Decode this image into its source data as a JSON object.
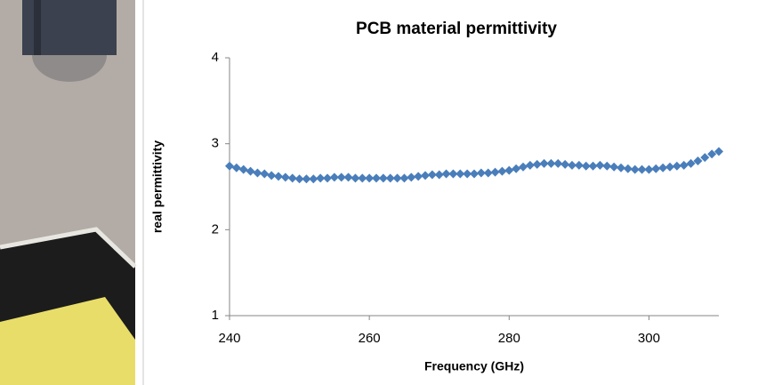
{
  "chart_data": {
    "type": "scatter",
    "title": "PCB material permittivity",
    "x_label": "Frequency (GHz)",
    "y_label": "real permittivity",
    "x": [
      240,
      241,
      242,
      243,
      244,
      245,
      246,
      247,
      248,
      249,
      250,
      251,
      252,
      253,
      254,
      255,
      256,
      257,
      258,
      259,
      260,
      261,
      262,
      263,
      264,
      265,
      266,
      267,
      268,
      269,
      270,
      271,
      272,
      273,
      274,
      275,
      276,
      277,
      278,
      279,
      280,
      281,
      282,
      283,
      284,
      285,
      286,
      287,
      288,
      289,
      290,
      291,
      292,
      293,
      294,
      295,
      296,
      297,
      298,
      299,
      300,
      301,
      302,
      303,
      304,
      305,
      306,
      307,
      308,
      309,
      310
    ],
    "values": [
      2.74,
      2.72,
      2.7,
      2.68,
      2.66,
      2.65,
      2.63,
      2.62,
      2.61,
      2.6,
      2.59,
      2.59,
      2.59,
      2.6,
      2.6,
      2.61,
      2.61,
      2.61,
      2.6,
      2.6,
      2.6,
      2.6,
      2.6,
      2.6,
      2.6,
      2.6,
      2.61,
      2.62,
      2.63,
      2.64,
      2.64,
      2.65,
      2.65,
      2.65,
      2.65,
      2.65,
      2.66,
      2.66,
      2.67,
      2.68,
      2.69,
      2.71,
      2.73,
      2.75,
      2.76,
      2.77,
      2.77,
      2.77,
      2.76,
      2.75,
      2.75,
      2.74,
      2.74,
      2.75,
      2.74,
      2.73,
      2.72,
      2.71,
      2.7,
      2.7,
      2.7,
      2.71,
      2.72,
      2.73,
      2.74,
      2.75,
      2.77,
      2.8,
      2.84,
      2.88,
      2.91
    ],
    "color": "#4a7ebb",
    "xlim": [
      240,
      310
    ],
    "ylim": [
      1,
      4
    ],
    "xticks": [
      240,
      260,
      280,
      300
    ],
    "yticks": [
      1,
      2,
      3,
      4
    ]
  }
}
